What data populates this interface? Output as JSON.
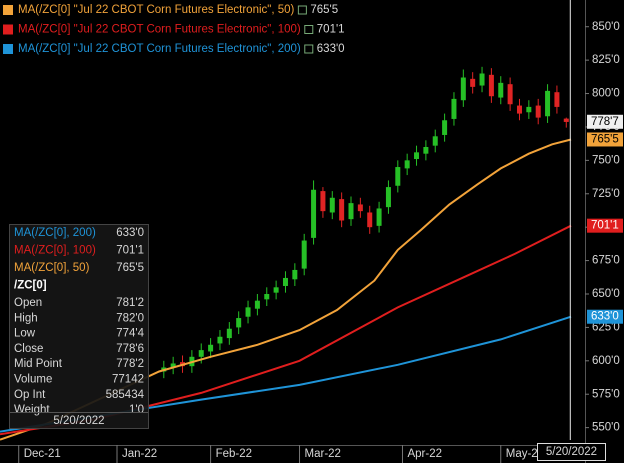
{
  "chart_data": {
    "type": "candlestick",
    "xlim": [
      0,
      125
    ],
    "xticks": [
      {
        "value": 4,
        "label": "Dec-21"
      },
      {
        "value": 25,
        "label": "Jan-22"
      },
      {
        "value": 45,
        "label": "Feb-22"
      },
      {
        "value": 64,
        "label": "Mar-22"
      },
      {
        "value": 86,
        "label": "Apr-22"
      },
      {
        "value": 107,
        "label": "May-22"
      }
    ],
    "ylim": [
      537,
      870
    ],
    "yticks": [
      {
        "value": 550,
        "label": "550'0"
      },
      {
        "value": 575,
        "label": "575'0"
      },
      {
        "value": 600,
        "label": "600'0"
      },
      {
        "value": 625,
        "label": "625'0"
      },
      {
        "value": 650,
        "label": "650'0"
      },
      {
        "value": 675,
        "label": "675'0"
      },
      {
        "value": 700,
        "label": "700'0"
      },
      {
        "value": 725,
        "label": "725'0"
      },
      {
        "value": 750,
        "label": "750'0"
      },
      {
        "value": 775,
        "label": "775'0"
      },
      {
        "value": 800,
        "label": "800'0"
      },
      {
        "value": 825,
        "label": "825'0"
      },
      {
        "value": 850,
        "label": "850'0"
      }
    ],
    "up_color": "#26c026",
    "down_color": "#e02424",
    "candles": {
      "x": [
        35,
        37,
        39,
        41,
        43,
        45,
        47,
        49,
        51,
        53,
        55,
        57,
        59,
        61,
        63,
        65,
        67,
        69,
        71,
        73,
        75,
        77,
        79,
        81,
        83,
        85,
        87,
        89,
        91,
        93,
        95,
        97,
        99,
        101,
        103,
        105,
        107,
        109,
        111,
        113,
        115,
        117,
        119,
        121
      ],
      "open": [
        592,
        595,
        599,
        596,
        603,
        607,
        613,
        617,
        625,
        633,
        639,
        646,
        651,
        656,
        661,
        669,
        692,
        727,
        711,
        721,
        706,
        717,
        711,
        701,
        715,
        731,
        744,
        751,
        755,
        761,
        769,
        781,
        795,
        811,
        806,
        814,
        797,
        807,
        791,
        786,
        791,
        783,
        801,
        781.25
      ],
      "high": [
        600,
        603,
        604,
        608,
        613,
        617,
        623,
        629,
        637,
        645,
        650,
        655,
        660,
        667,
        673,
        695,
        735,
        730,
        727,
        726,
        723,
        722,
        716,
        719,
        735,
        750,
        755,
        761,
        765,
        773,
        785,
        801,
        818,
        816,
        820,
        819,
        813,
        812,
        796,
        795,
        796,
        807,
        806,
        782
      ],
      "low": [
        587,
        590,
        591,
        591,
        598,
        602,
        608,
        612,
        620,
        628,
        634,
        641,
        646,
        651,
        656,
        664,
        687,
        707,
        706,
        700,
        701,
        707,
        695,
        696,
        710,
        726,
        739,
        746,
        750,
        756,
        764,
        776,
        790,
        800,
        801,
        793,
        792,
        787,
        780,
        781,
        777,
        778,
        785,
        774.5
      ],
      "close": [
        595,
        598,
        596,
        603,
        608,
        612,
        618,
        624,
        632,
        640,
        645,
        650,
        655,
        662,
        668,
        690,
        728,
        712,
        722,
        705,
        718,
        712,
        700,
        714,
        730,
        745,
        750,
        756,
        760,
        768,
        780,
        796,
        812,
        805,
        815,
        798,
        808,
        792,
        785,
        790,
        782,
        802,
        790,
        778.75
      ]
    },
    "series": [
      {
        "name": "MA(/ZC[0] \"Jul 22 CBOT Corn Futures Electronic\", 50)",
        "color": "#f2a33a",
        "x": [
          0,
          10,
          21,
          34,
          45,
          55,
          64,
          72,
          80,
          85,
          90,
          96,
          102,
          107,
          113,
          118,
          122
        ],
        "values": [
          541,
          553,
          571,
          592,
          603,
          612,
          623,
          638,
          660,
          683,
          698,
          717,
          732,
          744,
          755,
          762,
          765.625
        ],
        "last": {
          "value": 765.625,
          "label": "765'5"
        }
      },
      {
        "name": "MA(/ZC[0] \"Jul 22 CBOT Corn Futures Electronic\", 100)",
        "color": "#e01e1e",
        "x": [
          0,
          20,
          43,
          64,
          85,
          100,
          110,
          122
        ],
        "values": [
          545,
          556,
          576,
          600,
          640,
          664,
          680,
          701.125
        ],
        "last": {
          "value": 701.125,
          "label": "701'1"
        }
      },
      {
        "name": "MA(/ZC[0] \"Jul 22 CBOT Corn Futures Electronic\", 200)",
        "color": "#1f94d8",
        "x": [
          0,
          43,
          64,
          85,
          107,
          122
        ],
        "values": [
          547,
          571,
          582,
          597,
          616,
          633
        ],
        "last": {
          "value": 633,
          "label": "633'0"
        }
      }
    ],
    "price_marker": {
      "value": 778.875,
      "label": "778'7"
    }
  },
  "info_box": {
    "ma_labels": [
      "MA(/ZC[0], 200)",
      "MA(/ZC[0], 100)",
      "MA(/ZC[0], 50)"
    ],
    "symbol": "/ZC[0]",
    "fields": [
      {
        "label": "Open",
        "value": "781'2"
      },
      {
        "label": "High",
        "value": "782'0"
      },
      {
        "label": "Low",
        "value": "774'4"
      },
      {
        "label": "Close",
        "value": "778'6"
      },
      {
        "label": "Mid Point",
        "value": "778'2"
      },
      {
        "label": "Volume",
        "value": "77142"
      },
      {
        "label": "Op Int",
        "value": "585434"
      },
      {
        "label": "Weight",
        "value": "1'0"
      }
    ],
    "date": "5/20/2022"
  }
}
